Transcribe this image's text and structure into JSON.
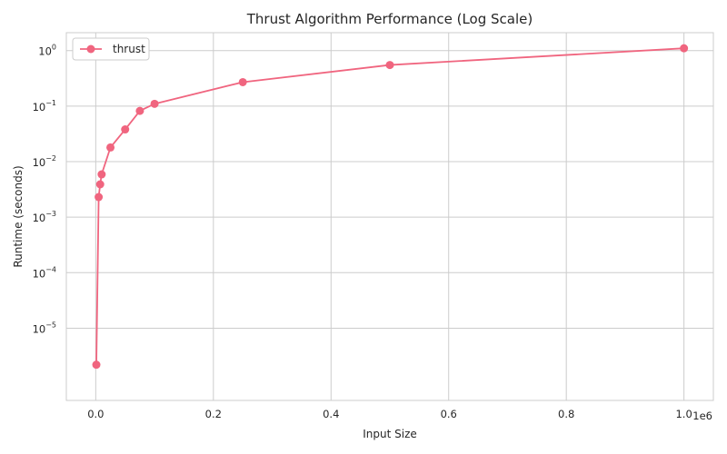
{
  "chart_data": {
    "type": "line",
    "title": "Thrust Algorithm Performance (Log Scale)",
    "xlabel": "Input Size",
    "ylabel": "Runtime (seconds)",
    "x_offset_label": "1e6",
    "x_scale": "linear",
    "y_scale": "log",
    "xlim": [
      -50000,
      1050000
    ],
    "ylim": [
      5e-07,
      2.1
    ],
    "x_ticks": [
      0,
      200000,
      400000,
      600000,
      800000,
      1000000
    ],
    "x_tick_labels": [
      "0.0",
      "0.2",
      "0.4",
      "0.6",
      "0.8",
      "1.0"
    ],
    "y_ticks": [
      1e-05,
      0.0001,
      0.001,
      0.01,
      0.1,
      1
    ],
    "y_tick_labels": [
      {
        "base": "10",
        "exp": "−5"
      },
      {
        "base": "10",
        "exp": "−4"
      },
      {
        "base": "10",
        "exp": "−3"
      },
      {
        "base": "10",
        "exp": "−2"
      },
      {
        "base": "10",
        "exp": "−1"
      },
      {
        "base": "10",
        "exp": "0"
      }
    ],
    "grid": true,
    "legend_position": "top-left",
    "series": [
      {
        "name": "thrust",
        "color": "#f0657f",
        "marker": "circle",
        "x": [
          1000,
          5000,
          7500,
          10000,
          25000,
          50000,
          75000,
          100000,
          250000,
          500000,
          1000000
        ],
        "y": [
          2.2e-06,
          0.0023,
          0.0039,
          0.0059,
          0.018,
          0.038,
          0.082,
          0.11,
          0.27,
          0.55,
          1.1
        ]
      }
    ]
  }
}
